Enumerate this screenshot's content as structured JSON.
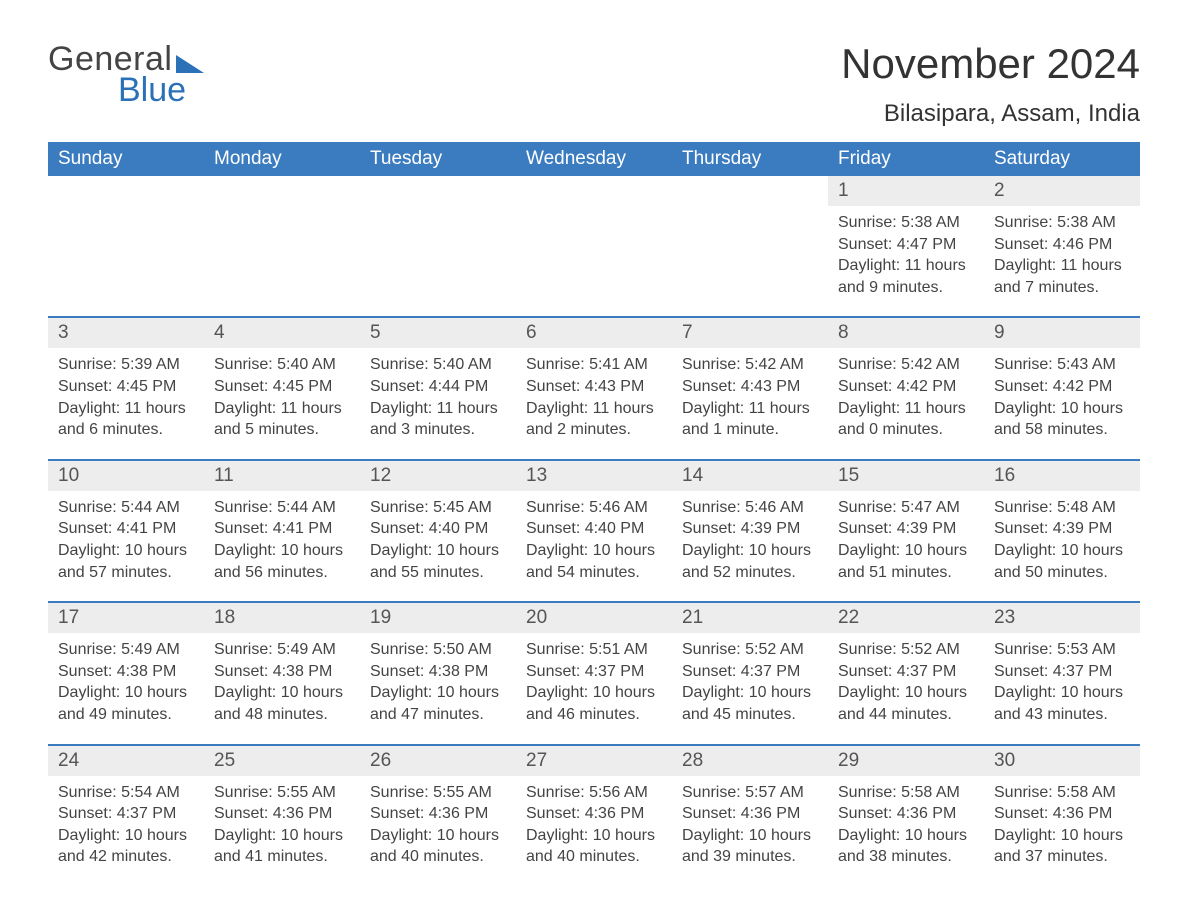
{
  "logo": {
    "general": "General",
    "blue": "Blue"
  },
  "header": {
    "month_title": "November 2024",
    "location": "Bilasipara, Assam, India"
  },
  "colors": {
    "header_bg": "#3b7bbf",
    "header_text": "#ffffff",
    "daynum_bg": "#ededed",
    "text": "#444444",
    "rule": "#3b7bbf",
    "logo_blue": "#2b71b8"
  },
  "weekdays": [
    "Sunday",
    "Monday",
    "Tuesday",
    "Wednesday",
    "Thursday",
    "Friday",
    "Saturday"
  ],
  "weeks": [
    [
      null,
      null,
      null,
      null,
      null,
      {
        "day": "1",
        "sunrise": "Sunrise: 5:38 AM",
        "sunset": "Sunset: 4:47 PM",
        "daylight1": "Daylight: 11 hours",
        "daylight2": "and 9 minutes."
      },
      {
        "day": "2",
        "sunrise": "Sunrise: 5:38 AM",
        "sunset": "Sunset: 4:46 PM",
        "daylight1": "Daylight: 11 hours",
        "daylight2": "and 7 minutes."
      }
    ],
    [
      {
        "day": "3",
        "sunrise": "Sunrise: 5:39 AM",
        "sunset": "Sunset: 4:45 PM",
        "daylight1": "Daylight: 11 hours",
        "daylight2": "and 6 minutes."
      },
      {
        "day": "4",
        "sunrise": "Sunrise: 5:40 AM",
        "sunset": "Sunset: 4:45 PM",
        "daylight1": "Daylight: 11 hours",
        "daylight2": "and 5 minutes."
      },
      {
        "day": "5",
        "sunrise": "Sunrise: 5:40 AM",
        "sunset": "Sunset: 4:44 PM",
        "daylight1": "Daylight: 11 hours",
        "daylight2": "and 3 minutes."
      },
      {
        "day": "6",
        "sunrise": "Sunrise: 5:41 AM",
        "sunset": "Sunset: 4:43 PM",
        "daylight1": "Daylight: 11 hours",
        "daylight2": "and 2 minutes."
      },
      {
        "day": "7",
        "sunrise": "Sunrise: 5:42 AM",
        "sunset": "Sunset: 4:43 PM",
        "daylight1": "Daylight: 11 hours",
        "daylight2": "and 1 minute."
      },
      {
        "day": "8",
        "sunrise": "Sunrise: 5:42 AM",
        "sunset": "Sunset: 4:42 PM",
        "daylight1": "Daylight: 11 hours",
        "daylight2": "and 0 minutes."
      },
      {
        "day": "9",
        "sunrise": "Sunrise: 5:43 AM",
        "sunset": "Sunset: 4:42 PM",
        "daylight1": "Daylight: 10 hours",
        "daylight2": "and 58 minutes."
      }
    ],
    [
      {
        "day": "10",
        "sunrise": "Sunrise: 5:44 AM",
        "sunset": "Sunset: 4:41 PM",
        "daylight1": "Daylight: 10 hours",
        "daylight2": "and 57 minutes."
      },
      {
        "day": "11",
        "sunrise": "Sunrise: 5:44 AM",
        "sunset": "Sunset: 4:41 PM",
        "daylight1": "Daylight: 10 hours",
        "daylight2": "and 56 minutes."
      },
      {
        "day": "12",
        "sunrise": "Sunrise: 5:45 AM",
        "sunset": "Sunset: 4:40 PM",
        "daylight1": "Daylight: 10 hours",
        "daylight2": "and 55 minutes."
      },
      {
        "day": "13",
        "sunrise": "Sunrise: 5:46 AM",
        "sunset": "Sunset: 4:40 PM",
        "daylight1": "Daylight: 10 hours",
        "daylight2": "and 54 minutes."
      },
      {
        "day": "14",
        "sunrise": "Sunrise: 5:46 AM",
        "sunset": "Sunset: 4:39 PM",
        "daylight1": "Daylight: 10 hours",
        "daylight2": "and 52 minutes."
      },
      {
        "day": "15",
        "sunrise": "Sunrise: 5:47 AM",
        "sunset": "Sunset: 4:39 PM",
        "daylight1": "Daylight: 10 hours",
        "daylight2": "and 51 minutes."
      },
      {
        "day": "16",
        "sunrise": "Sunrise: 5:48 AM",
        "sunset": "Sunset: 4:39 PM",
        "daylight1": "Daylight: 10 hours",
        "daylight2": "and 50 minutes."
      }
    ],
    [
      {
        "day": "17",
        "sunrise": "Sunrise: 5:49 AM",
        "sunset": "Sunset: 4:38 PM",
        "daylight1": "Daylight: 10 hours",
        "daylight2": "and 49 minutes."
      },
      {
        "day": "18",
        "sunrise": "Sunrise: 5:49 AM",
        "sunset": "Sunset: 4:38 PM",
        "daylight1": "Daylight: 10 hours",
        "daylight2": "and 48 minutes."
      },
      {
        "day": "19",
        "sunrise": "Sunrise: 5:50 AM",
        "sunset": "Sunset: 4:38 PM",
        "daylight1": "Daylight: 10 hours",
        "daylight2": "and 47 minutes."
      },
      {
        "day": "20",
        "sunrise": "Sunrise: 5:51 AM",
        "sunset": "Sunset: 4:37 PM",
        "daylight1": "Daylight: 10 hours",
        "daylight2": "and 46 minutes."
      },
      {
        "day": "21",
        "sunrise": "Sunrise: 5:52 AM",
        "sunset": "Sunset: 4:37 PM",
        "daylight1": "Daylight: 10 hours",
        "daylight2": "and 45 minutes."
      },
      {
        "day": "22",
        "sunrise": "Sunrise: 5:52 AM",
        "sunset": "Sunset: 4:37 PM",
        "daylight1": "Daylight: 10 hours",
        "daylight2": "and 44 minutes."
      },
      {
        "day": "23",
        "sunrise": "Sunrise: 5:53 AM",
        "sunset": "Sunset: 4:37 PM",
        "daylight1": "Daylight: 10 hours",
        "daylight2": "and 43 minutes."
      }
    ],
    [
      {
        "day": "24",
        "sunrise": "Sunrise: 5:54 AM",
        "sunset": "Sunset: 4:37 PM",
        "daylight1": "Daylight: 10 hours",
        "daylight2": "and 42 minutes."
      },
      {
        "day": "25",
        "sunrise": "Sunrise: 5:55 AM",
        "sunset": "Sunset: 4:36 PM",
        "daylight1": "Daylight: 10 hours",
        "daylight2": "and 41 minutes."
      },
      {
        "day": "26",
        "sunrise": "Sunrise: 5:55 AM",
        "sunset": "Sunset: 4:36 PM",
        "daylight1": "Daylight: 10 hours",
        "daylight2": "and 40 minutes."
      },
      {
        "day": "27",
        "sunrise": "Sunrise: 5:56 AM",
        "sunset": "Sunset: 4:36 PM",
        "daylight1": "Daylight: 10 hours",
        "daylight2": "and 40 minutes."
      },
      {
        "day": "28",
        "sunrise": "Sunrise: 5:57 AM",
        "sunset": "Sunset: 4:36 PM",
        "daylight1": "Daylight: 10 hours",
        "daylight2": "and 39 minutes."
      },
      {
        "day": "29",
        "sunrise": "Sunrise: 5:58 AM",
        "sunset": "Sunset: 4:36 PM",
        "daylight1": "Daylight: 10 hours",
        "daylight2": "and 38 minutes."
      },
      {
        "day": "30",
        "sunrise": "Sunrise: 5:58 AM",
        "sunset": "Sunset: 4:36 PM",
        "daylight1": "Daylight: 10 hours",
        "daylight2": "and 37 minutes."
      }
    ]
  ]
}
